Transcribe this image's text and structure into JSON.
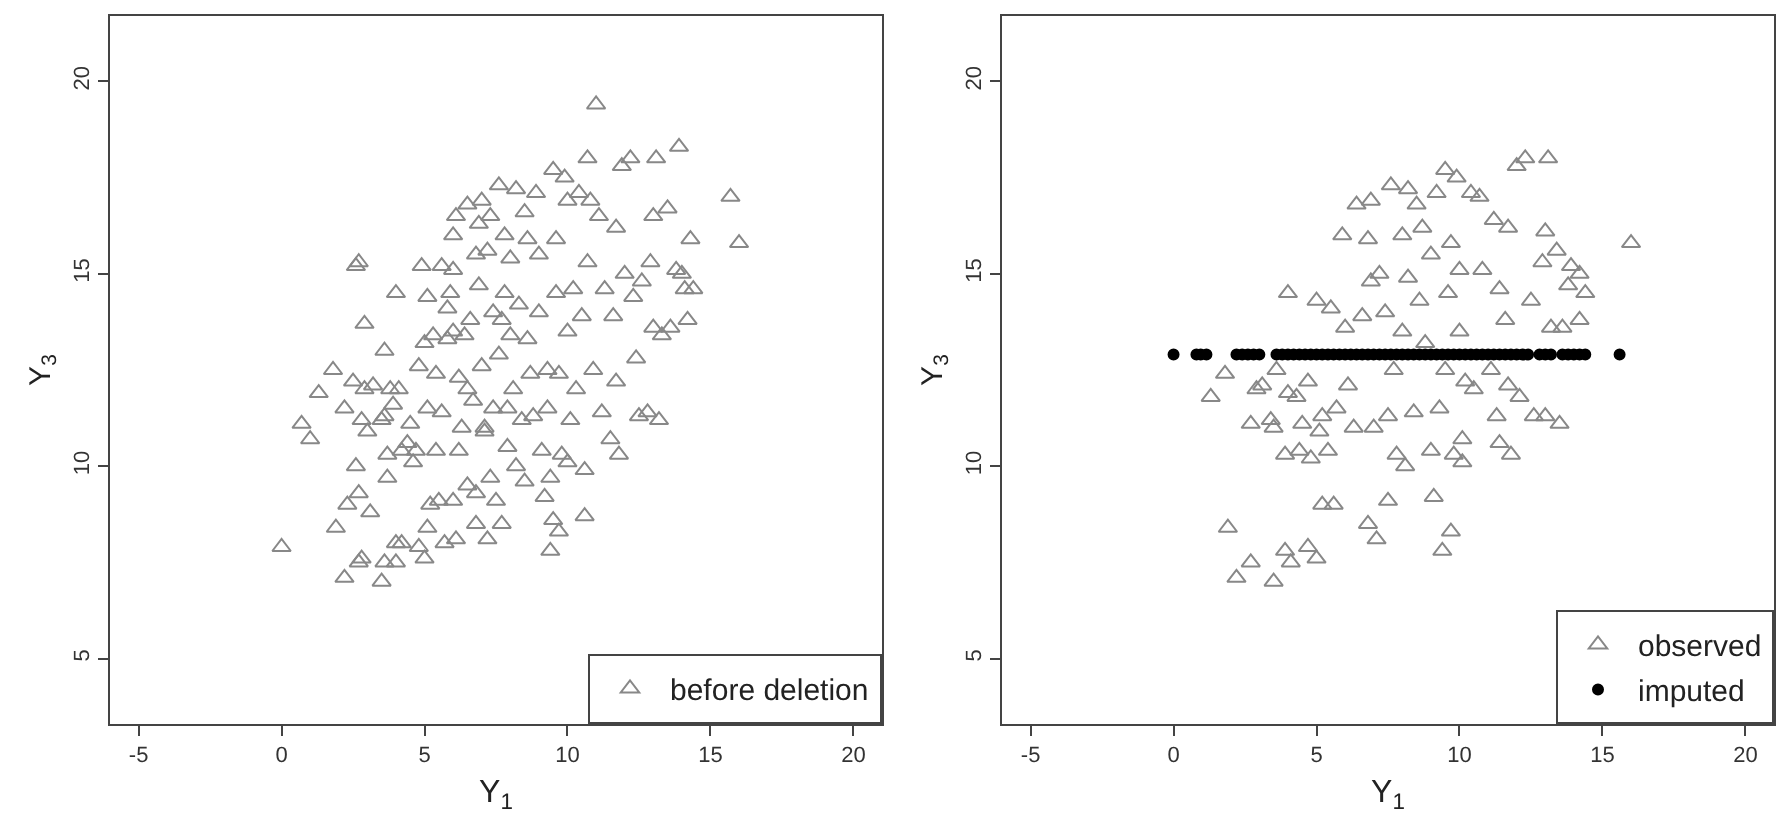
{
  "chart_data": [
    {
      "type": "scatter",
      "xlabel": "Y$_{1}$",
      "ylabel": "Y$_{3}$",
      "xlim": [
        -6,
        21
      ],
      "ylim": [
        3.3,
        21.7
      ],
      "xticks": [
        -5,
        0,
        5,
        10,
        15,
        20
      ],
      "yticks": [
        5,
        10,
        15,
        20
      ],
      "grid": false,
      "legend": "bottom right",
      "marker": "triangle",
      "series": [
        {
          "name": "before deletion",
          "color": "#888888",
          "x": [
            0,
            0.7,
            1.0,
            1.3,
            1.8,
            1.9,
            2.2,
            2.2,
            2.3,
            2.5,
            2.6,
            2.7,
            2.6,
            2.7,
            2.7,
            2.8,
            2.8,
            2.9,
            2.9,
            3.0,
            3.1,
            3.2,
            3.5,
            3.5,
            3.6,
            3.6,
            3.6,
            3.7,
            3.7,
            3.8,
            3.9,
            4.0,
            4.0,
            4.0,
            4.1,
            4.2,
            4.2,
            4.4,
            4.5,
            4.6,
            4.7,
            4.8,
            4.8,
            4.9,
            5.0,
            5.0,
            5.1,
            5.1,
            5.1,
            5.2,
            5.3,
            5.4,
            5.4,
            5.5,
            5.6,
            5.6,
            5.7,
            5.8,
            5.8,
            5.9,
            6.0,
            6.0,
            6.0,
            6.0,
            6.1,
            6.1,
            6.2,
            6.2,
            6.3,
            6.4,
            6.5,
            6.5,
            6.5,
            6.6,
            6.7,
            6.8,
            6.8,
            6.8,
            6.9,
            6.9,
            7.0,
            7.0,
            7.1,
            7.1,
            7.2,
            7.2,
            7.3,
            7.3,
            7.4,
            7.4,
            7.5,
            7.6,
            7.6,
            7.7,
            7.7,
            7.8,
            7.8,
            7.9,
            7.9,
            8.0,
            8.0,
            8.1,
            8.2,
            8.2,
            8.3,
            8.4,
            8.5,
            8.5,
            8.6,
            8.6,
            8.7,
            8.8,
            8.9,
            9.0,
            9.0,
            9.1,
            9.2,
            9.3,
            9.3,
            9.4,
            9.4,
            9.5,
            9.5,
            9.6,
            9.6,
            9.7,
            9.7,
            9.8,
            9.9,
            10.0,
            10.0,
            10.0,
            10.1,
            10.2,
            10.3,
            10.4,
            10.5,
            10.6,
            10.6,
            10.7,
            10.7,
            10.8,
            10.9,
            11.0,
            11.1,
            11.2,
            11.3,
            11.5,
            11.6,
            11.7,
            11.7,
            11.8,
            11.9,
            12.0,
            12.2,
            12.3,
            12.4,
            12.5,
            12.6,
            12.8,
            12.9,
            13.0,
            13.1,
            13.2,
            13.0,
            13.3,
            13.5,
            13.6,
            13.8,
            13.9,
            14.0,
            14.1,
            14.2,
            14.3,
            14.4,
            15.7,
            16.0
          ],
          "values": [
            7.9,
            11.1,
            10.7,
            11.9,
            12.5,
            8.4,
            7.1,
            11.5,
            9.0,
            12.2,
            15.2,
            15.3,
            10.0,
            9.3,
            7.5,
            7.6,
            11.2,
            12.0,
            13.7,
            10.9,
            8.8,
            12.1,
            11.2,
            7.0,
            7.5,
            11.3,
            13.0,
            10.3,
            9.7,
            12.0,
            11.6,
            8.0,
            7.5,
            14.5,
            12.0,
            8.0,
            10.4,
            10.6,
            11.1,
            10.1,
            10.4,
            7.9,
            12.6,
            15.2,
            7.6,
            13.2,
            8.4,
            11.5,
            14.4,
            9.0,
            13.4,
            12.4,
            10.4,
            9.1,
            15.2,
            11.4,
            8.0,
            14.1,
            13.3,
            14.5,
            13.5,
            15.1,
            16.0,
            9.1,
            16.5,
            8.1,
            10.4,
            12.3,
            11.0,
            13.4,
            16.8,
            9.5,
            12.0,
            13.8,
            11.7,
            15.5,
            9.3,
            8.5,
            16.3,
            14.7,
            16.9,
            12.6,
            11.0,
            10.9,
            15.6,
            8.1,
            16.5,
            9.7,
            14.0,
            11.5,
            9.1,
            17.3,
            12.9,
            13.8,
            8.5,
            14.5,
            16.0,
            11.5,
            10.5,
            15.4,
            13.4,
            12.0,
            17.2,
            10.0,
            14.2,
            11.2,
            16.6,
            9.6,
            15.9,
            13.3,
            12.4,
            11.3,
            17.1,
            15.5,
            14.0,
            10.4,
            9.2,
            12.5,
            11.5,
            7.8,
            9.7,
            17.7,
            8.6,
            14.5,
            15.9,
            8.3,
            12.4,
            10.3,
            17.5,
            13.5,
            16.9,
            10.1,
            11.2,
            14.6,
            12.0,
            17.1,
            13.9,
            9.9,
            8.7,
            15.3,
            18.0,
            16.9,
            12.5,
            19.4,
            16.5,
            11.4,
            14.6,
            10.7,
            13.9,
            16.2,
            12.2,
            10.3,
            17.8,
            15.0,
            18.0,
            14.4,
            12.8,
            11.3,
            14.8,
            11.4,
            15.3,
            16.5,
            18.0,
            11.2,
            13.6,
            13.4,
            16.7,
            13.6,
            15.1,
            18.3,
            15.0,
            14.6,
            13.8,
            15.9,
            14.6,
            17.0,
            15.8
          ]
        }
      ]
    },
    {
      "type": "scatter",
      "xlabel": "Y$_{1}$",
      "ylabel": "Y$_{3}$",
      "xlim": [
        -6,
        21
      ],
      "ylim": [
        3.3,
        21.7
      ],
      "xticks": [
        -5,
        0,
        5,
        10,
        15,
        20
      ],
      "yticks": [
        5,
        10,
        15,
        20
      ],
      "grid": false,
      "legend": "bottom right",
      "series": [
        {
          "name": "observed",
          "color": "#888888",
          "marker": "triangle",
          "x": [
            1.3,
            1.8,
            1.9,
            2.2,
            2.7,
            2.7,
            2.9,
            3.1,
            3.4,
            3.5,
            3.5,
            3.6,
            3.9,
            3.9,
            4.0,
            4.0,
            4.1,
            4.3,
            4.4,
            4.5,
            4.7,
            4.7,
            4.8,
            5.0,
            5.0,
            5.1,
            5.2,
            5.2,
            5.4,
            5.5,
            5.6,
            5.7,
            5.9,
            6.0,
            6.1,
            6.3,
            6.4,
            6.6,
            6.8,
            6.8,
            6.9,
            6.9,
            7.0,
            7.1,
            7.2,
            7.4,
            7.5,
            7.5,
            7.6,
            7.7,
            7.8,
            8.0,
            8.0,
            8.1,
            8.2,
            8.2,
            8.4,
            8.5,
            8.6,
            8.7,
            8.8,
            9.0,
            9.0,
            9.1,
            9.2,
            9.3,
            9.4,
            9.5,
            9.5,
            9.6,
            9.7,
            9.7,
            9.8,
            9.9,
            10.0,
            10.0,
            10.1,
            10.1,
            10.2,
            10.4,
            10.5,
            10.7,
            10.8,
            11.1,
            11.2,
            11.3,
            11.4,
            11.4,
            11.6,
            11.7,
            11.7,
            11.8,
            12.0,
            12.1,
            12.3,
            12.5,
            12.6,
            12.9,
            13.0,
            13.0,
            13.1,
            13.2,
            13.4,
            13.5,
            13.6,
            13.8,
            13.9,
            14.2,
            14.2,
            14.4,
            16.0
          ],
          "values": [
            11.8,
            12.4,
            8.4,
            7.1,
            11.1,
            7.5,
            12.0,
            12.1,
            11.2,
            7.0,
            11.0,
            12.5,
            7.8,
            10.3,
            14.5,
            11.9,
            7.5,
            11.8,
            10.4,
            11.1,
            7.9,
            12.2,
            10.2,
            7.6,
            14.3,
            10.9,
            11.3,
            9.0,
            10.4,
            14.1,
            9.0,
            11.5,
            16.0,
            13.6,
            12.1,
            11.0,
            16.8,
            13.9,
            8.5,
            15.9,
            16.9,
            14.8,
            11.0,
            8.1,
            15.0,
            14.0,
            9.1,
            11.3,
            17.3,
            12.5,
            10.3,
            16.0,
            13.5,
            10.0,
            17.2,
            14.9,
            11.4,
            16.8,
            14.3,
            16.2,
            13.2,
            15.5,
            10.4,
            9.2,
            17.1,
            11.5,
            7.8,
            17.7,
            12.5,
            14.5,
            8.3,
            15.8,
            10.3,
            17.5,
            13.5,
            15.1,
            10.7,
            10.1,
            12.2,
            17.1,
            12.0,
            17.0,
            15.1,
            12.5,
            16.4,
            11.3,
            14.6,
            10.6,
            13.8,
            16.2,
            12.1,
            10.3,
            17.8,
            11.8,
            18.0,
            14.3,
            11.3,
            15.3,
            11.3,
            16.1,
            18.0,
            13.6,
            15.6,
            11.1,
            13.6,
            14.7,
            15.2,
            15.0,
            13.8,
            14.5,
            15.8
          ]
        },
        {
          "name": "imputed",
          "color": "#000000",
          "marker": "circle",
          "x": [
            0,
            0.8,
            0.95,
            1.15,
            2.2,
            2.4,
            2.6,
            2.8,
            3.0,
            3.6,
            3.8,
            4.0,
            4.2,
            4.4,
            4.6,
            4.8,
            5.0,
            5.2,
            5.4,
            5.6,
            5.8,
            6.0,
            6.2,
            6.4,
            6.6,
            6.8,
            7.0,
            7.2,
            7.4,
            7.6,
            7.8,
            8.0,
            8.2,
            8.4,
            8.6,
            8.8,
            9.0,
            9.2,
            9.4,
            9.6,
            9.8,
            10.0,
            10.2,
            10.4,
            10.6,
            10.8,
            11.0,
            11.2,
            11.4,
            11.6,
            11.8,
            12.0,
            12.2,
            12.4,
            12.8,
            13.0,
            13.2,
            13.6,
            13.8,
            14.0,
            14.2,
            14.4,
            15.6
          ],
          "values": [
            12.9,
            12.9,
            12.9,
            12.9,
            12.9,
            12.9,
            12.9,
            12.9,
            12.9,
            12.9,
            12.9,
            12.9,
            12.9,
            12.9,
            12.9,
            12.9,
            12.9,
            12.9,
            12.9,
            12.9,
            12.9,
            12.9,
            12.9,
            12.9,
            12.9,
            12.9,
            12.9,
            12.9,
            12.9,
            12.9,
            12.9,
            12.9,
            12.9,
            12.9,
            12.9,
            12.9,
            12.9,
            12.9,
            12.9,
            12.9,
            12.9,
            12.9,
            12.9,
            12.9,
            12.9,
            12.9,
            12.9,
            12.9,
            12.9,
            12.9,
            12.9,
            12.9,
            12.9,
            12.9,
            12.9,
            12.9,
            12.9,
            12.9,
            12.9,
            12.9,
            12.9,
            12.9,
            12.9
          ]
        }
      ]
    }
  ]
}
